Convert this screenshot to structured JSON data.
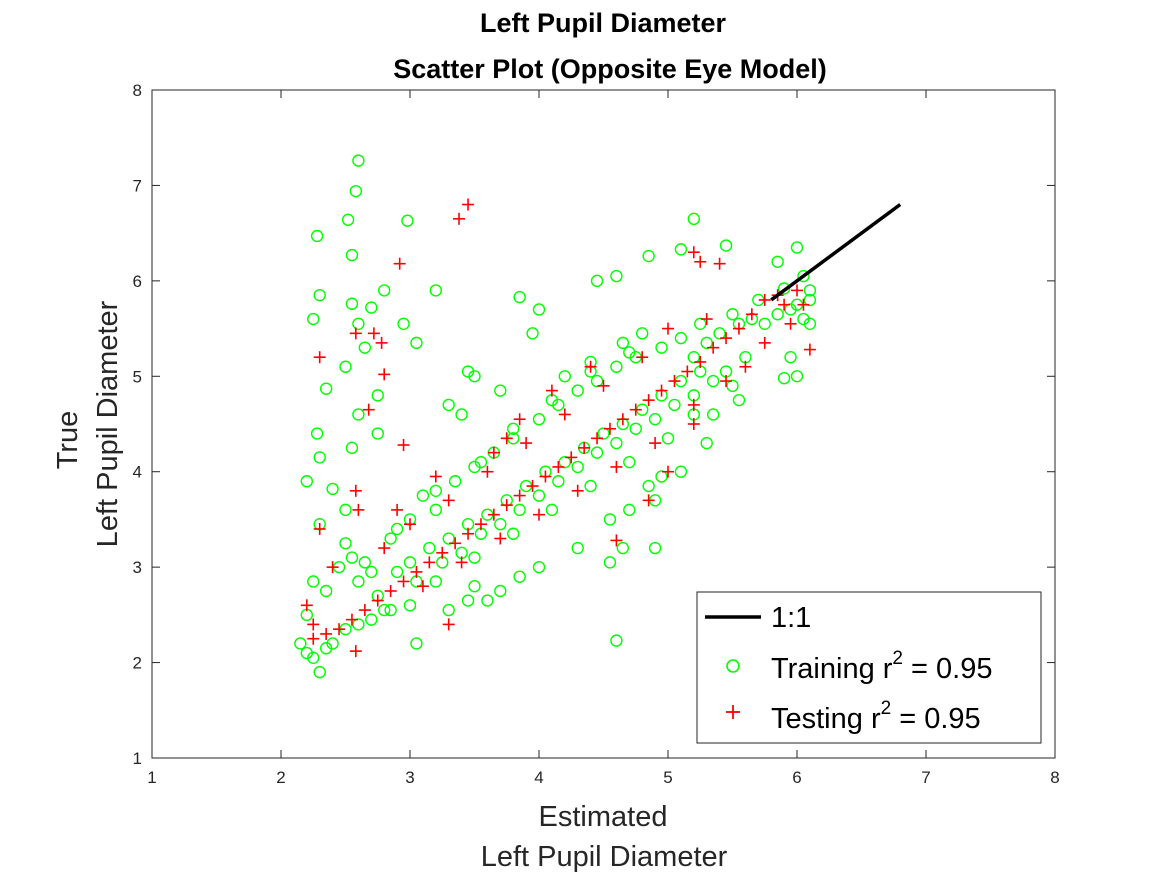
{
  "chart_data": {
    "type": "scatter",
    "title": [
      "Left Pupil Diameter",
      "Scatter Plot (Opposite Eye Model)"
    ],
    "xlabel": [
      "Estimated",
      "Left Pupil Diameter"
    ],
    "ylabel": [
      "True",
      "Left Pupil Diameter"
    ],
    "xlim": [
      1,
      8
    ],
    "ylim": [
      1,
      8
    ],
    "xticks": [
      1,
      2,
      3,
      4,
      5,
      6,
      7,
      8
    ],
    "yticks": [
      1,
      2,
      3,
      4,
      5,
      6,
      7,
      8
    ],
    "grid": false,
    "box": true,
    "legend_position": "bottom-right",
    "legend": [
      {
        "marker": "line",
        "color": "#000000",
        "label": "1:1"
      },
      {
        "marker": "circle",
        "color": "#00ff00",
        "label_main": "Training r",
        "label_sup": "2",
        "label_tail": " = 0.95"
      },
      {
        "marker": "plus",
        "color": "#ff0000",
        "label_main": "Testing r",
        "label_sup": "2",
        "label_tail": " = 0.95"
      }
    ],
    "reference_line": {
      "name": "1:1",
      "color": "#000000",
      "x": [
        5.8,
        6.8
      ],
      "y": [
        5.8,
        6.8
      ]
    },
    "series": [
      {
        "name": "Training",
        "marker": "circle",
        "color": "#00ff00",
        "r2": 0.95,
        "points": [
          [
            2.6,
            7.26
          ],
          [
            2.58,
            6.94
          ],
          [
            2.52,
            6.64
          ],
          [
            2.98,
            6.63
          ],
          [
            2.28,
            6.47
          ],
          [
            2.55,
            6.27
          ],
          [
            5.2,
            6.65
          ],
          [
            5.1,
            6.33
          ],
          [
            5.45,
            6.37
          ],
          [
            5.85,
            6.2
          ],
          [
            6.0,
            6.35
          ],
          [
            4.85,
            6.26
          ],
          [
            4.45,
            6.0
          ],
          [
            4.6,
            6.05
          ],
          [
            3.2,
            5.9
          ],
          [
            2.8,
            5.9
          ],
          [
            2.3,
            5.85
          ],
          [
            2.25,
            5.6
          ],
          [
            2.55,
            5.76
          ],
          [
            2.7,
            5.72
          ],
          [
            2.95,
            5.55
          ],
          [
            3.05,
            5.35
          ],
          [
            2.6,
            5.55
          ],
          [
            2.65,
            5.3
          ],
          [
            2.5,
            5.1
          ],
          [
            2.35,
            4.87
          ],
          [
            2.75,
            4.8
          ],
          [
            2.6,
            4.6
          ],
          [
            2.75,
            4.4
          ],
          [
            2.28,
            4.4
          ],
          [
            2.3,
            4.15
          ],
          [
            2.55,
            4.25
          ],
          [
            2.2,
            3.9
          ],
          [
            2.4,
            3.82
          ],
          [
            2.5,
            3.6
          ],
          [
            2.3,
            3.45
          ],
          [
            3.45,
            5.05
          ],
          [
            3.5,
            5.0
          ],
          [
            3.7,
            4.85
          ],
          [
            3.3,
            4.7
          ],
          [
            3.4,
            4.6
          ],
          [
            3.85,
            5.83
          ],
          [
            4.0,
            5.7
          ],
          [
            4.4,
            5.15
          ],
          [
            4.2,
            5.0
          ],
          [
            3.95,
            5.45
          ],
          [
            4.65,
            5.35
          ],
          [
            4.8,
            5.45
          ],
          [
            5.25,
            5.55
          ],
          [
            5.5,
            5.65
          ],
          [
            5.7,
            5.8
          ],
          [
            5.9,
            5.92
          ],
          [
            6.05,
            6.05
          ],
          [
            6.1,
            5.9
          ],
          [
            5.95,
            5.2
          ],
          [
            5.9,
            4.98
          ],
          [
            6.0,
            5.0
          ],
          [
            6.1,
            5.55
          ],
          [
            5.6,
            5.2
          ],
          [
            5.5,
            4.9
          ],
          [
            5.35,
            4.6
          ],
          [
            5.55,
            4.75
          ],
          [
            5.3,
            4.3
          ],
          [
            5.1,
            4.0
          ],
          [
            4.9,
            3.7
          ],
          [
            4.95,
            3.95
          ],
          [
            4.85,
            3.85
          ],
          [
            4.7,
            3.6
          ],
          [
            4.55,
            3.5
          ],
          [
            4.9,
            3.2
          ],
          [
            4.65,
            3.2
          ],
          [
            4.55,
            3.05
          ],
          [
            4.3,
            3.2
          ],
          [
            4.0,
            3.0
          ],
          [
            3.85,
            2.9
          ],
          [
            3.7,
            2.75
          ],
          [
            3.6,
            2.65
          ],
          [
            3.5,
            2.8
          ],
          [
            3.3,
            2.55
          ],
          [
            3.0,
            2.6
          ],
          [
            2.85,
            2.55
          ],
          [
            3.05,
            2.2
          ],
          [
            3.45,
            2.65
          ],
          [
            4.6,
            2.23
          ],
          [
            2.3,
            1.9
          ],
          [
            2.2,
            2.1
          ],
          [
            2.15,
            2.2
          ],
          [
            2.25,
            2.05
          ],
          [
            2.35,
            2.15
          ],
          [
            2.2,
            2.5
          ],
          [
            2.25,
            2.85
          ],
          [
            2.4,
            2.2
          ],
          [
            2.5,
            2.35
          ],
          [
            2.6,
            2.4
          ],
          [
            2.7,
            2.45
          ],
          [
            2.8,
            2.55
          ],
          [
            2.35,
            2.75
          ],
          [
            2.45,
            3.0
          ],
          [
            2.5,
            3.25
          ],
          [
            2.55,
            3.1
          ],
          [
            2.65,
            3.05
          ],
          [
            2.7,
            2.95
          ],
          [
            2.85,
            3.3
          ],
          [
            3.0,
            3.5
          ],
          [
            3.2,
            3.6
          ],
          [
            3.1,
            3.75
          ],
          [
            3.35,
            3.9
          ],
          [
            3.55,
            4.1
          ],
          [
            3.65,
            4.2
          ],
          [
            3.8,
            4.35
          ],
          [
            4.0,
            4.55
          ],
          [
            4.15,
            4.7
          ],
          [
            4.3,
            4.85
          ],
          [
            4.45,
            4.95
          ],
          [
            4.6,
            5.1
          ],
          [
            4.75,
            5.2
          ],
          [
            4.95,
            5.3
          ],
          [
            5.1,
            5.4
          ],
          [
            5.2,
            5.2
          ],
          [
            5.3,
            5.35
          ],
          [
            5.4,
            5.45
          ],
          [
            5.55,
            5.55
          ],
          [
            5.65,
            5.6
          ],
          [
            5.75,
            5.55
          ],
          [
            5.85,
            5.65
          ],
          [
            6.0,
            5.75
          ],
          [
            6.1,
            5.8
          ],
          [
            6.05,
            5.6
          ],
          [
            5.95,
            5.7
          ],
          [
            3.0,
            3.05
          ],
          [
            3.15,
            3.2
          ],
          [
            3.3,
            3.3
          ],
          [
            3.45,
            3.45
          ],
          [
            3.6,
            3.55
          ],
          [
            3.75,
            3.7
          ],
          [
            3.9,
            3.85
          ],
          [
            4.05,
            4.0
          ],
          [
            4.2,
            4.1
          ],
          [
            4.35,
            4.25
          ],
          [
            4.5,
            4.4
          ],
          [
            4.65,
            4.5
          ],
          [
            4.8,
            4.65
          ],
          [
            4.95,
            4.8
          ],
          [
            5.1,
            4.95
          ],
          [
            5.25,
            5.05
          ],
          [
            3.2,
            2.85
          ],
          [
            3.5,
            3.1
          ],
          [
            3.8,
            3.35
          ],
          [
            4.1,
            3.6
          ],
          [
            4.4,
            3.85
          ],
          [
            4.7,
            4.1
          ],
          [
            5.0,
            4.35
          ],
          [
            5.2,
            4.6
          ],
          [
            2.9,
            3.4
          ],
          [
            3.2,
            3.8
          ],
          [
            3.5,
            4.05
          ],
          [
            3.8,
            4.45
          ],
          [
            4.1,
            4.75
          ],
          [
            4.4,
            5.05
          ],
          [
            4.7,
            5.25
          ],
          [
            2.6,
            2.85
          ],
          [
            2.75,
            2.7
          ],
          [
            2.9,
            2.95
          ],
          [
            3.05,
            2.85
          ],
          [
            3.25,
            3.05
          ],
          [
            3.4,
            3.15
          ],
          [
            3.55,
            3.35
          ],
          [
            3.7,
            3.45
          ],
          [
            3.85,
            3.6
          ],
          [
            4.0,
            3.75
          ],
          [
            4.15,
            3.9
          ],
          [
            4.3,
            4.05
          ],
          [
            4.45,
            4.2
          ],
          [
            4.6,
            4.3
          ],
          [
            4.75,
            4.45
          ],
          [
            4.9,
            4.55
          ],
          [
            5.05,
            4.7
          ],
          [
            5.2,
            4.8
          ],
          [
            5.35,
            4.95
          ],
          [
            5.45,
            5.05
          ]
        ]
      },
      {
        "name": "Testing",
        "marker": "plus",
        "color": "#ff0000",
        "r2": 0.95,
        "points": [
          [
            3.45,
            6.8
          ],
          [
            3.38,
            6.65
          ],
          [
            2.92,
            6.18
          ],
          [
            5.2,
            6.3
          ],
          [
            5.25,
            6.2
          ],
          [
            5.4,
            6.18
          ],
          [
            2.3,
            5.2
          ],
          [
            2.58,
            5.45
          ],
          [
            2.72,
            5.45
          ],
          [
            2.78,
            5.35
          ],
          [
            2.8,
            5.02
          ],
          [
            2.68,
            4.65
          ],
          [
            2.95,
            4.28
          ],
          [
            3.75,
            4.35
          ],
          [
            3.65,
            4.2
          ],
          [
            2.58,
            3.8
          ],
          [
            2.6,
            3.6
          ],
          [
            2.3,
            3.4
          ],
          [
            2.25,
            2.4
          ],
          [
            2.2,
            2.6
          ],
          [
            2.4,
            3.0
          ],
          [
            2.58,
            2.12
          ],
          [
            3.3,
            2.4
          ],
          [
            4.6,
            3.28
          ],
          [
            4.85,
            3.7
          ],
          [
            5.0,
            4.0
          ],
          [
            5.2,
            4.5
          ],
          [
            6.1,
            5.28
          ],
          [
            5.85,
            5.85
          ],
          [
            6.0,
            5.9
          ],
          [
            5.9,
            5.75
          ],
          [
            5.75,
            5.8
          ],
          [
            5.65,
            5.65
          ],
          [
            5.55,
            5.5
          ],
          [
            5.45,
            5.4
          ],
          [
            5.35,
            5.3
          ],
          [
            5.25,
            5.15
          ],
          [
            5.15,
            5.05
          ],
          [
            5.05,
            4.95
          ],
          [
            4.95,
            4.85
          ],
          [
            4.85,
            4.75
          ],
          [
            4.75,
            4.65
          ],
          [
            4.65,
            4.55
          ],
          [
            4.55,
            4.45
          ],
          [
            4.45,
            4.35
          ],
          [
            4.35,
            4.25
          ],
          [
            4.25,
            4.15
          ],
          [
            4.15,
            4.05
          ],
          [
            4.05,
            3.95
          ],
          [
            3.95,
            3.85
          ],
          [
            3.85,
            3.75
          ],
          [
            3.75,
            3.65
          ],
          [
            3.65,
            3.55
          ],
          [
            3.55,
            3.45
          ],
          [
            3.45,
            3.35
          ],
          [
            3.35,
            3.25
          ],
          [
            3.25,
            3.15
          ],
          [
            3.15,
            3.05
          ],
          [
            3.05,
            2.95
          ],
          [
            2.95,
            2.85
          ],
          [
            2.85,
            2.75
          ],
          [
            2.75,
            2.65
          ],
          [
            2.65,
            2.55
          ],
          [
            2.55,
            2.45
          ],
          [
            2.45,
            2.35
          ],
          [
            2.35,
            2.3
          ],
          [
            2.25,
            2.25
          ],
          [
            4.8,
            5.2
          ],
          [
            4.5,
            4.9
          ],
          [
            4.2,
            4.6
          ],
          [
            3.9,
            4.3
          ],
          [
            3.6,
            4.0
          ],
          [
            3.3,
            3.7
          ],
          [
            3.0,
            3.45
          ],
          [
            2.8,
            3.2
          ],
          [
            3.1,
            2.8
          ],
          [
            3.4,
            3.05
          ],
          [
            3.7,
            3.3
          ],
          [
            4.0,
            3.55
          ],
          [
            4.3,
            3.8
          ],
          [
            4.6,
            4.05
          ],
          [
            4.9,
            4.3
          ],
          [
            5.2,
            4.7
          ],
          [
            5.45,
            4.95
          ],
          [
            5.6,
            5.1
          ],
          [
            5.75,
            5.35
          ],
          [
            5.95,
            5.55
          ],
          [
            6.05,
            5.75
          ],
          [
            5.3,
            5.6
          ],
          [
            5.0,
            5.5
          ],
          [
            4.4,
            5.1
          ],
          [
            4.1,
            4.85
          ],
          [
            3.85,
            4.55
          ],
          [
            3.2,
            3.95
          ],
          [
            2.9,
            3.6
          ]
        ]
      }
    ]
  }
}
